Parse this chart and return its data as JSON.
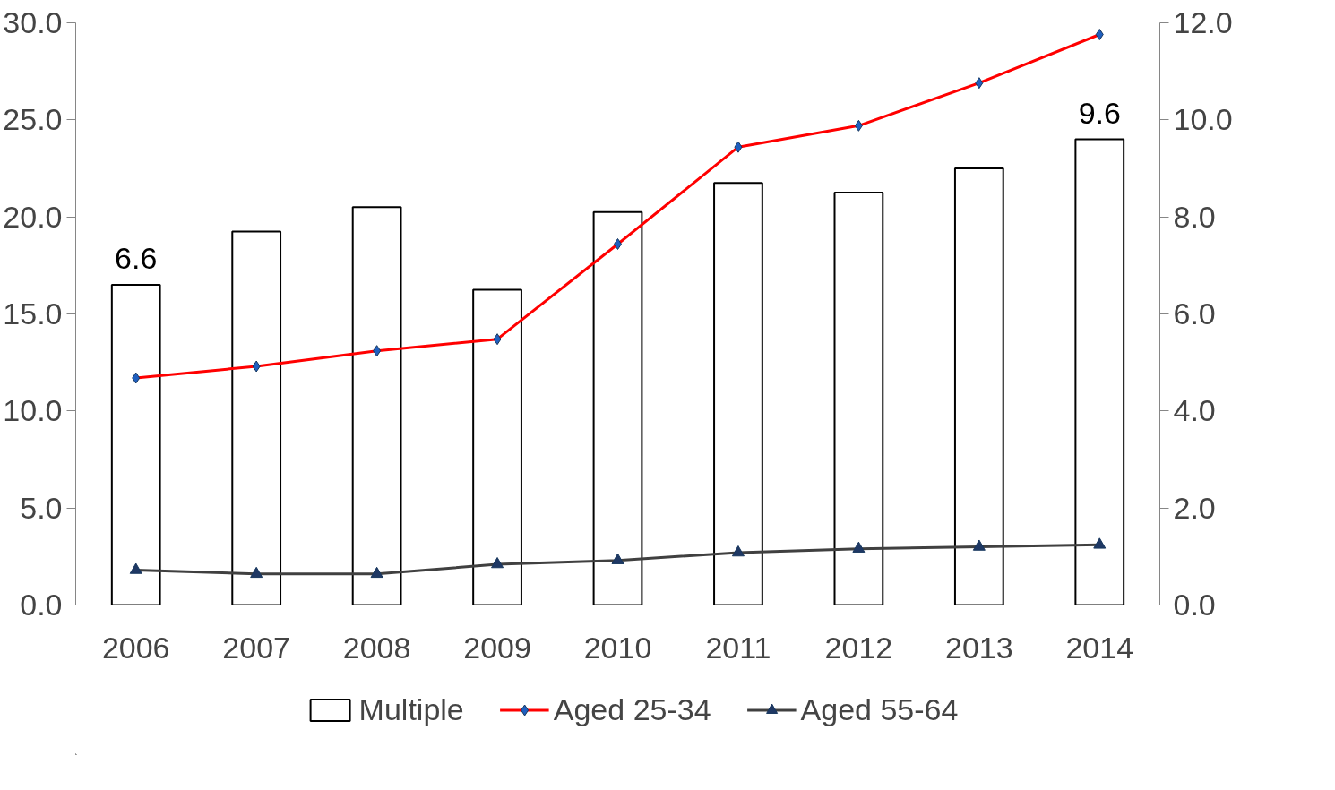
{
  "chart_data": {
    "type": "bar",
    "categories": [
      "2006",
      "2007",
      "2008",
      "2009",
      "2010",
      "2011",
      "2012",
      "2013",
      "2014"
    ],
    "series": [
      {
        "name": "Multiple",
        "axis": "y2",
        "color": "#ffffff",
        "values": [
          6.6,
          7.7,
          8.2,
          6.5,
          8.1,
          8.7,
          8.5,
          9.0,
          9.6
        ],
        "value_labels": [
          "6.6",
          null,
          null,
          null,
          null,
          null,
          null,
          null,
          "9.6"
        ]
      },
      {
        "name": "Aged 25-34",
        "type": "line",
        "color": "#ff0000",
        "marker": "diamond",
        "values": [
          11.7,
          12.3,
          13.1,
          13.7,
          18.6,
          23.6,
          24.7,
          26.9,
          29.4
        ]
      },
      {
        "name": "Aged 55-64",
        "type": "line",
        "color": "#404040",
        "marker": "triangle",
        "values": [
          1.8,
          1.6,
          1.6,
          2.1,
          2.3,
          2.7,
          2.9,
          3.0,
          3.1
        ]
      }
    ],
    "ylim": [
      0,
      30
    ],
    "yticks": [
      {
        "value": 0,
        "label": "0.0"
      },
      {
        "value": 5,
        "label": "5.0"
      },
      {
        "value": 10,
        "label": "10.0"
      },
      {
        "value": 15,
        "label": "15.0"
      },
      {
        "value": 20,
        "label": "20.0"
      },
      {
        "value": 25,
        "label": "25.0"
      },
      {
        "value": 30,
        "label": "30.0"
      }
    ],
    "y2lim": [
      0,
      12
    ],
    "y2ticks": [
      {
        "value": 0,
        "label": "0.0"
      },
      {
        "value": 2,
        "label": "2.0"
      },
      {
        "value": 4,
        "label": "4.0"
      },
      {
        "value": 6,
        "label": "6.0"
      },
      {
        "value": 8,
        "label": "8.0"
      },
      {
        "value": 10,
        "label": "10.0"
      },
      {
        "value": 12,
        "label": "12.0"
      }
    ],
    "grid": false,
    "legend": "bottom",
    "line_style": "solid"
  }
}
